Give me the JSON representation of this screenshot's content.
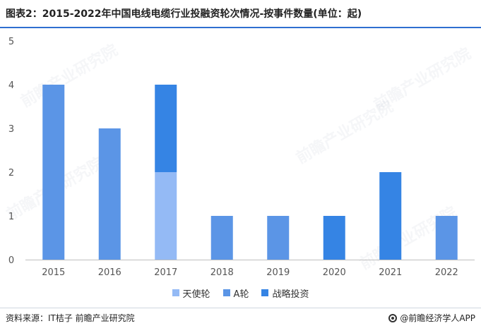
{
  "title": "图表2：2015-2022年中国电线电缆行业投融资轮次情况-按事件数量(单位：起)",
  "source": "资料来源：IT桔子 前瞻产业研究院",
  "brand": "@前瞻经济学人APP",
  "watermark": "前瞻产业研究院",
  "colors": {
    "tianshi": "#94baf5",
    "a_round": "#5b95e6",
    "strategic": "#3584e4"
  },
  "chart_data": {
    "type": "bar",
    "stacked": true,
    "title": "图表2：2015-2022年中国电线电缆行业投融资轮次情况-按事件数量(单位：起)",
    "categories": [
      "2015",
      "2016",
      "2017",
      "2018",
      "2019",
      "2020",
      "2021",
      "2022"
    ],
    "series": [
      {
        "name": "天使轮",
        "color": "#94baf5",
        "values": [
          0,
          0,
          2,
          0,
          0,
          0,
          0,
          0
        ]
      },
      {
        "name": "A轮",
        "color": "#5b95e6",
        "values": [
          4,
          3,
          0,
          1,
          1,
          0,
          0,
          1
        ]
      },
      {
        "name": "战略投资",
        "color": "#3584e4",
        "values": [
          0,
          0,
          2,
          0,
          0,
          1,
          2,
          0
        ]
      }
    ],
    "yticks": [
      "0",
      "1",
      "2",
      "3",
      "4",
      "5"
    ],
    "ylim": [
      0,
      5
    ],
    "xlabel": "",
    "ylabel": "",
    "grid": false,
    "legend": "bottom"
  }
}
